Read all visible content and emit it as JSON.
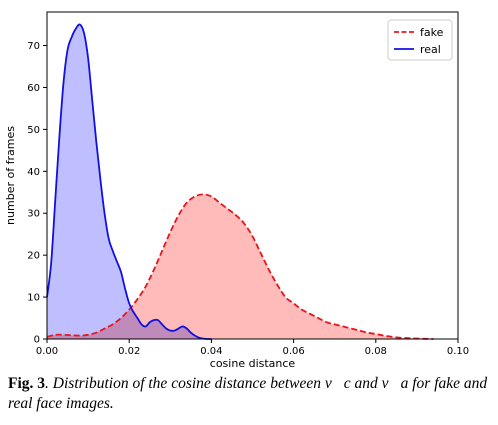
{
  "chart_data": {
    "type": "area",
    "xlabel": "cosine distance",
    "ylabel": "number of frames",
    "xlim": [
      0.0,
      0.1
    ],
    "ylim": [
      0,
      78
    ],
    "xticks": [
      0.0,
      0.02,
      0.04,
      0.06,
      0.08,
      0.1
    ],
    "xtick_labels": [
      "0.00",
      "0.02",
      "0.04",
      "0.06",
      "0.08",
      "0.10"
    ],
    "yticks": [
      0,
      10,
      20,
      30,
      40,
      50,
      60,
      70
    ],
    "ytick_labels": [
      "0",
      "10",
      "20",
      "30",
      "40",
      "50",
      "60",
      "70"
    ],
    "grid": false,
    "legend_position": "top-right",
    "series": [
      {
        "name": "fake",
        "line_style": "dashed",
        "line_color": "#e8151b",
        "fill_color": "#ffb3b3",
        "x": [
          0.0,
          0.002,
          0.004,
          0.006,
          0.008,
          0.01,
          0.012,
          0.014,
          0.016,
          0.018,
          0.02,
          0.022,
          0.024,
          0.026,
          0.028,
          0.03,
          0.032,
          0.034,
          0.036,
          0.038,
          0.04,
          0.042,
          0.044,
          0.046,
          0.048,
          0.05,
          0.052,
          0.054,
          0.056,
          0.058,
          0.06,
          0.062,
          0.064,
          0.066,
          0.068,
          0.07,
          0.072,
          0.074,
          0.076,
          0.078,
          0.08,
          0.082,
          0.084,
          0.086,
          0.088,
          0.09,
          0.092,
          0.094
        ],
        "y": [
          0.5,
          1.0,
          1.0,
          0.9,
          0.8,
          1.0,
          1.5,
          2.5,
          3.5,
          5.0,
          7.0,
          9.5,
          12.5,
          16.5,
          21.0,
          25.5,
          29.5,
          32.5,
          34.0,
          34.5,
          34.0,
          32.5,
          31.0,
          29.5,
          27.5,
          24.5,
          20.5,
          16.5,
          13.0,
          10.0,
          8.5,
          7.0,
          6.0,
          5.0,
          4.0,
          3.5,
          3.0,
          2.5,
          2.0,
          1.5,
          1.2,
          0.8,
          0.5,
          0.3,
          0.2,
          0.1,
          0.05,
          0.0
        ]
      },
      {
        "name": "real",
        "line_style": "solid",
        "line_color": "#1010e0",
        "fill_color": "#b8b8ff",
        "x": [
          0.0,
          0.001,
          0.002,
          0.003,
          0.004,
          0.005,
          0.006,
          0.007,
          0.008,
          0.009,
          0.01,
          0.011,
          0.012,
          0.013,
          0.014,
          0.015,
          0.016,
          0.017,
          0.018,
          0.019,
          0.02,
          0.021,
          0.022,
          0.023,
          0.024,
          0.025,
          0.026,
          0.027,
          0.028,
          0.029,
          0.03,
          0.031,
          0.032,
          0.033,
          0.034,
          0.035,
          0.036,
          0.037,
          0.038,
          0.039,
          0.04
        ],
        "y": [
          10.0,
          18.0,
          33.0,
          48.0,
          61.0,
          69.0,
          72.0,
          74.0,
          75.0,
          73.0,
          67.0,
          57.0,
          47.0,
          38.0,
          30.0,
          24.0,
          21.0,
          18.5,
          16.0,
          12.0,
          8.5,
          6.5,
          5.0,
          3.5,
          3.0,
          4.0,
          4.5,
          4.5,
          3.5,
          2.5,
          2.0,
          2.0,
          2.5,
          3.0,
          2.5,
          1.5,
          0.8,
          0.3,
          0.1,
          0.0,
          0.0
        ]
      }
    ]
  },
  "caption": {
    "label": "Fig. 3",
    "text": ". Distribution of the cosine distance between v⃗c and v⃗a for fake and real face images."
  }
}
